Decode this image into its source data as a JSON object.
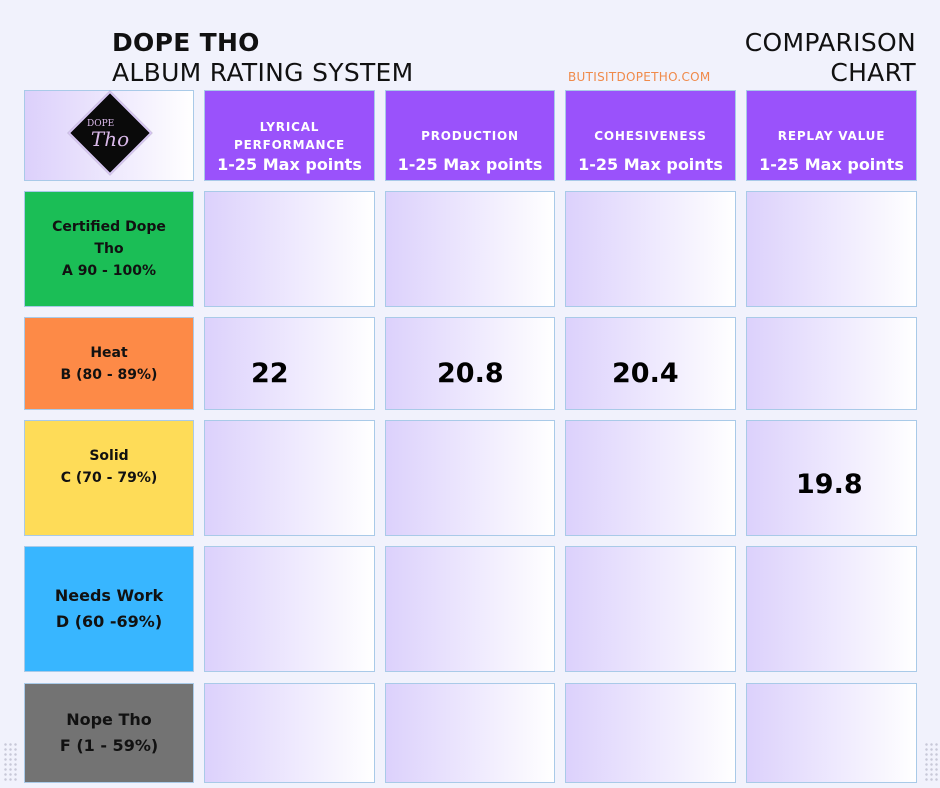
{
  "header": {
    "title_main": "DOPE THO",
    "title_sub": "ALBUM RATING SYSTEM",
    "title_right_line1": "COMPARISON",
    "title_right_line2": "CHART",
    "website": "BUTISITDOPETHO.COM"
  },
  "logo": {
    "small_text": "DOPE",
    "script_text": "Tho"
  },
  "columns": [
    {
      "line1": "LYRICAL",
      "line2": "PERFORMANCE",
      "points": "1-25 Max points"
    },
    {
      "line1": "PRODUCTION",
      "line2": "",
      "points": "1-25 Max points"
    },
    {
      "line1": "COHESIVENESS",
      "line2": "",
      "points": "1-25 Max points"
    },
    {
      "line1": "REPLAY VALUE",
      "line2": "",
      "points": "1-25 Max points"
    }
  ],
  "grades": [
    {
      "line1": "Certified Dope",
      "line2": "Tho",
      "line3": "A 90 - 100%",
      "color": "#1bbe56"
    },
    {
      "line1": "Heat",
      "line2": "B (80 - 89%)",
      "line3": "",
      "color": "#fd8a47"
    },
    {
      "line1": "Solid",
      "line2": "C (70 - 79%)",
      "line3": "",
      "color": "#fedc58"
    },
    {
      "line1": "Needs Work",
      "line2": "D (60 -69%)",
      "line3": "",
      "color": "#38b6ff"
    },
    {
      "line1": "Nope Tho",
      "line2": "F (1 - 59%)",
      "line3": "",
      "color": "#737373"
    }
  ],
  "scores": {
    "heat_lyrical": "22",
    "heat_production": "20.8",
    "heat_cohesiveness": "20.4",
    "solid_replay": "19.8"
  }
}
